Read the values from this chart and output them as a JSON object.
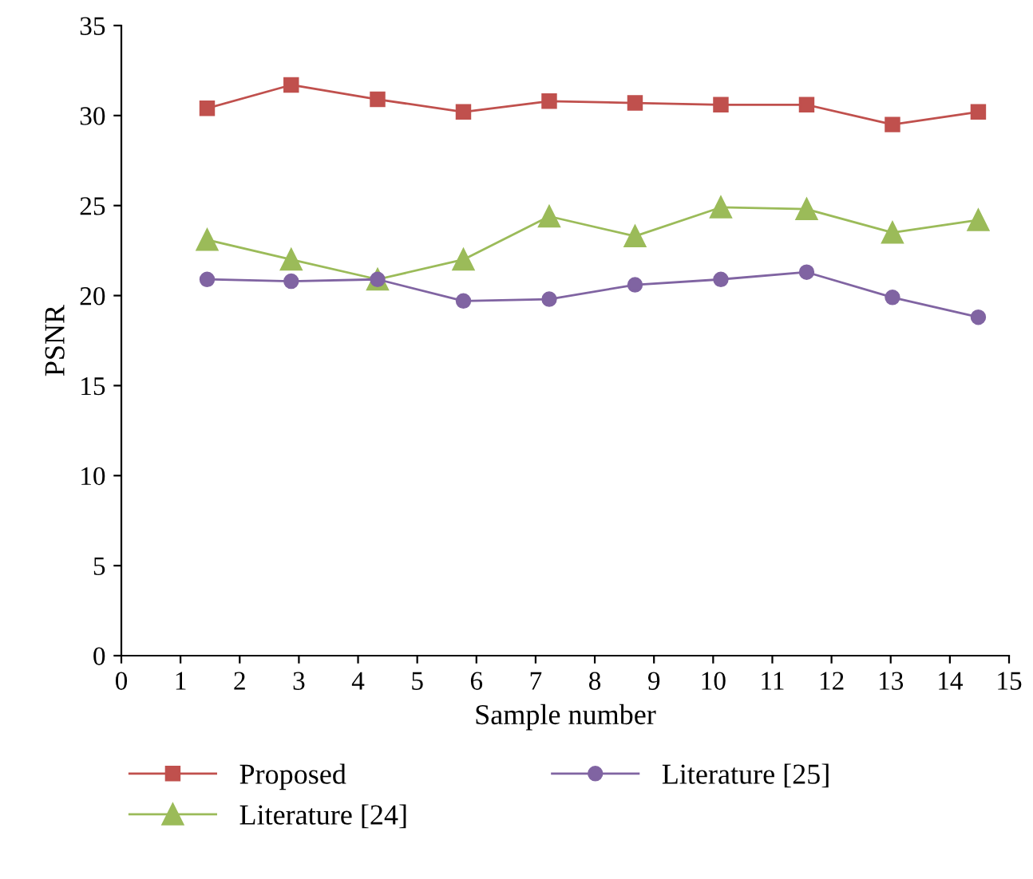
{
  "chart_data": {
    "type": "line",
    "xlabel": "Sample number",
    "ylabel": "PSNR",
    "x": [
      1.45,
      2.87,
      4.33,
      5.78,
      7.23,
      8.68,
      10.13,
      11.58,
      13.03,
      14.48
    ],
    "series": [
      {
        "name": "Proposed",
        "color": "#c0504d",
        "marker": "square",
        "values": [
          30.4,
          31.7,
          30.9,
          30.2,
          30.8,
          30.7,
          30.6,
          30.6,
          29.5,
          30.2
        ]
      },
      {
        "name": "Literature [24]",
        "color": "#9bbb59",
        "marker": "triangle",
        "values": [
          23.1,
          22.0,
          20.9,
          22.0,
          24.4,
          23.3,
          24.9,
          24.8,
          23.5,
          24.2
        ]
      },
      {
        "name": "Literature [25]",
        "color": "#8064a2",
        "marker": "circle",
        "values": [
          20.9,
          20.8,
          20.9,
          19.7,
          19.8,
          20.6,
          20.9,
          21.3,
          19.9,
          18.8
        ]
      }
    ],
    "xlim": [
      0,
      15
    ],
    "xticks": [
      0,
      1,
      2,
      3,
      4,
      5,
      6,
      7,
      8,
      9,
      10,
      11,
      12,
      13,
      14,
      15
    ],
    "ylim": [
      0,
      35
    ],
    "yticks": [
      0,
      5,
      10,
      15,
      20,
      25,
      30,
      35
    ],
    "grid": false,
    "legend": "bottom",
    "line_style": "solid"
  }
}
